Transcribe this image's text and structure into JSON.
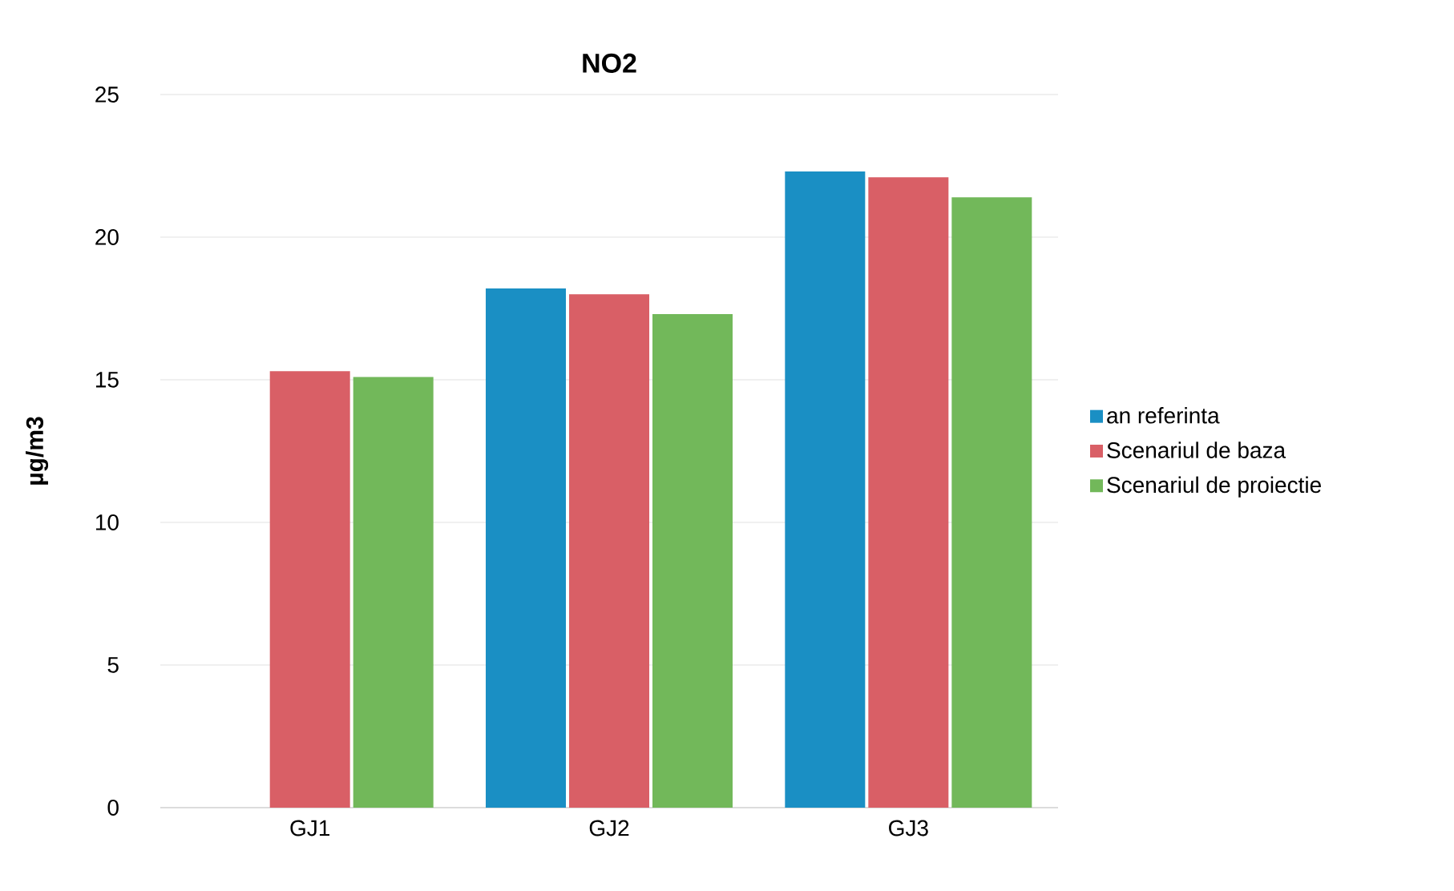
{
  "chart_data": {
    "type": "bar",
    "title": "**NO2**",
    "ylabel": "µg/m3",
    "categories": [
      "GJ1",
      "GJ2",
      "GJ3"
    ],
    "series": [
      {
        "name": "an referinta",
        "color": "#1a8fc4",
        "values": [
          null,
          18.2,
          22.3
        ]
      },
      {
        "name": "Scenariul de baza",
        "color": "#d95f66",
        "values": [
          15.3,
          18.0,
          22.1
        ]
      },
      {
        "name": "Scenariul de proiectie",
        "color": "#72b85a",
        "values": [
          15.1,
          17.3,
          21.4
        ]
      }
    ],
    "ylim": [
      0,
      25
    ],
    "yticks": [
      0,
      5,
      10,
      15,
      20,
      25
    ],
    "grid": "y",
    "legend": "right"
  }
}
